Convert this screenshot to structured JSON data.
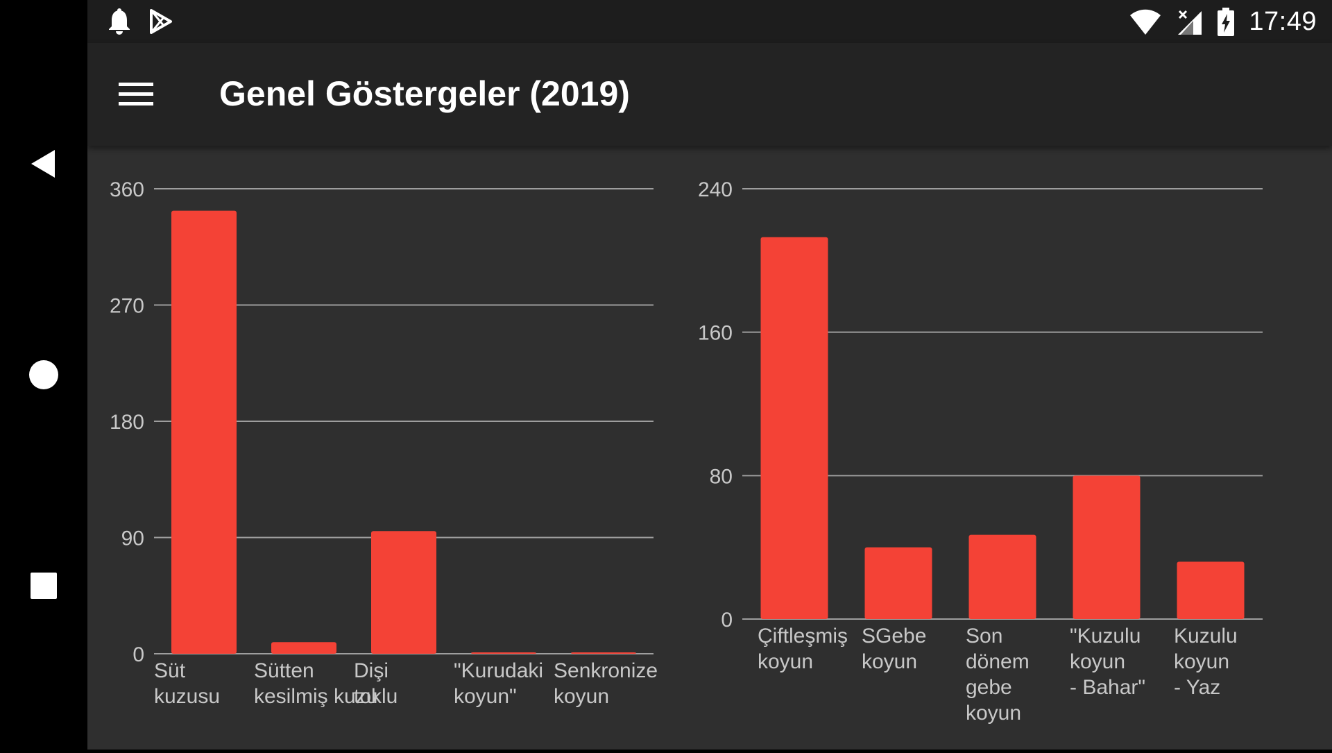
{
  "status_bar": {
    "time": "17:49",
    "icons": [
      "notification-bell-icon",
      "play-store-icon",
      "wifi-icon",
      "no-signal-icon",
      "battery-charging-icon"
    ]
  },
  "toolbar": {
    "title": "Genel Göstergeler (2019)",
    "menu_icon": "hamburger-menu-icon"
  },
  "navigation": {
    "icons": [
      "back-icon",
      "home-icon",
      "recents-icon"
    ]
  },
  "colors": {
    "bar": "#f44236",
    "grid": "#9e9e9e",
    "text": "#c8c8c8",
    "background": "#2f2f2f",
    "toolbar": "#232323",
    "statusbar": "#1d1d1d"
  },
  "chart_data": [
    {
      "type": "bar",
      "categories": [
        [
          "Süt",
          "kuzusu"
        ],
        [
          "Sütten",
          "kesilmiş kuzu"
        ],
        [
          "Dişi",
          "toklu"
        ],
        [
          "\"Kurudaki",
          "koyun\""
        ],
        [
          "Senkronize",
          "koyun"
        ]
      ],
      "values": [
        343,
        9,
        95,
        1,
        1
      ],
      "ylim": [
        0,
        360
      ],
      "yticks": [
        0,
        90,
        180,
        270,
        360
      ],
      "grid": true
    },
    {
      "type": "bar",
      "categories": [
        [
          "Çiftleşmiş",
          "koyun"
        ],
        [
          "SGebe",
          "koyun"
        ],
        [
          "Son",
          "dönem",
          "gebe",
          "koyun"
        ],
        [
          "\"Kuzulu",
          "koyun",
          "- Bahar\""
        ],
        [
          "Kuzulu",
          "koyun",
          "- Yaz"
        ]
      ],
      "values": [
        213,
        40,
        47,
        80,
        32
      ],
      "ylim": [
        0,
        240
      ],
      "yticks": [
        0,
        80,
        160,
        240
      ],
      "grid": true
    }
  ]
}
